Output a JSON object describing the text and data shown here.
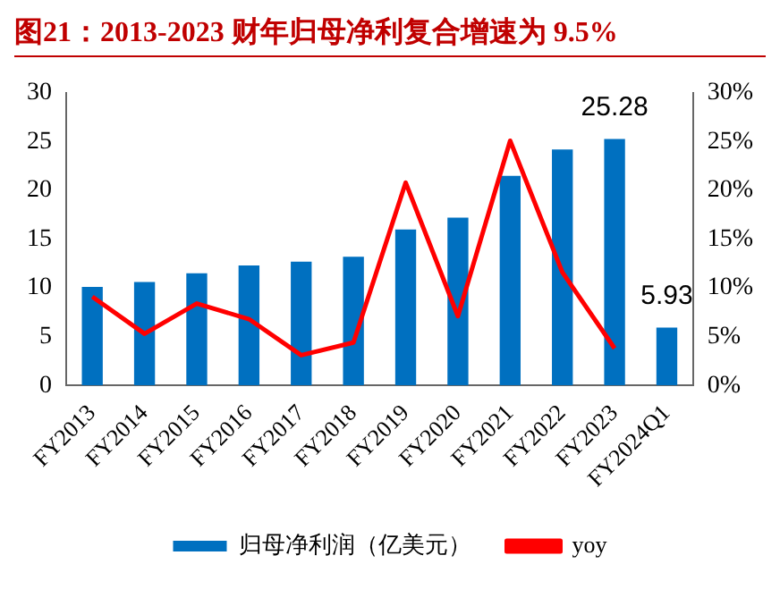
{
  "chart_data": {
    "type": "bar",
    "title": "图21：2013-2023 财年归母净利复合增速为 9.5%",
    "categories": [
      "FY2013",
      "FY2014",
      "FY2015",
      "FY2016",
      "FY2017",
      "FY2018",
      "FY2019",
      "FY2020",
      "FY2021",
      "FY2022",
      "FY2023",
      "FY2024Q1"
    ],
    "series": [
      {
        "name": "归母净利润（亿美元）",
        "color": "#0070c0",
        "values": [
          10.1,
          10.6,
          11.5,
          12.3,
          12.7,
          13.2,
          16.0,
          17.2,
          21.5,
          24.2,
          25.28,
          5.93
        ],
        "value_labels": [
          null,
          null,
          null,
          null,
          null,
          null,
          null,
          null,
          null,
          null,
          "25.28",
          "5.93"
        ]
      },
      {
        "name": "yoy",
        "type": "line",
        "axis": "y2",
        "color": "#ff0000",
        "values": [
          9.1,
          5.3,
          8.4,
          6.8,
          3.1,
          4.4,
          20.8,
          7.1,
          25.1,
          11.6,
          3.8,
          null
        ]
      }
    ],
    "ylim": [
      0,
      30
    ],
    "yticks": [
      0,
      5,
      10,
      15,
      20,
      25,
      30
    ],
    "y2lim": [
      0,
      30
    ],
    "y2ticks": [
      {
        "value": 0,
        "label": "0%"
      },
      {
        "value": 5,
        "label": "5%"
      },
      {
        "value": 10,
        "label": "10%"
      },
      {
        "value": 15,
        "label": "15%"
      },
      {
        "value": 20,
        "label": "20%"
      },
      {
        "value": 25,
        "label": "25%"
      },
      {
        "value": 30,
        "label": "30%"
      }
    ],
    "grid": false,
    "legend": "bottom",
    "marker": "none",
    "line_style": "solid"
  }
}
